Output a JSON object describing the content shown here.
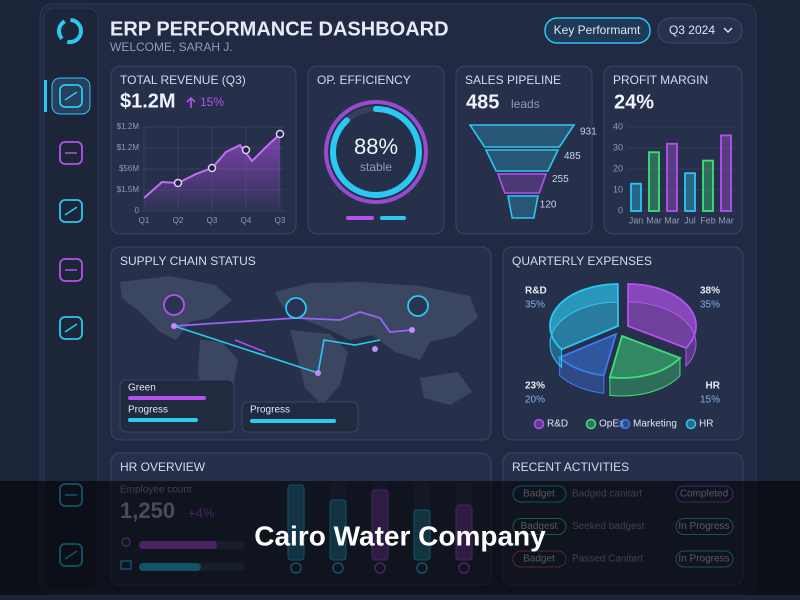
{
  "header": {
    "title": "ERP PERFORMANCE DASHBOARD",
    "subtitle": "WELCOME, SARAH J.",
    "button": "Key Performamt",
    "period": "Q3 2024"
  },
  "revenue": {
    "title": "TOTAL REVENUE (Q3)",
    "value": "$1.2M",
    "change": "15%",
    "y_labels": [
      "$1.2M",
      "$1.2M",
      "$56M",
      "$1.5M",
      "0"
    ],
    "x_labels": [
      "Q1",
      "Q2",
      "Q3",
      "Q4",
      "Q3"
    ]
  },
  "efficiency": {
    "title": "OP. EFFICIENCY",
    "value": 88,
    "value_label": "88%",
    "status": "stable"
  },
  "pipeline": {
    "title": "SALES PIPELINE",
    "value": "485",
    "unit": "leads",
    "stages": [
      "931",
      "485",
      "255",
      "120"
    ]
  },
  "profit_margin": {
    "title": "PROFIT MARGIN",
    "value": "24%",
    "categories": [
      "Jan",
      "Mar",
      "Mar",
      "Jul",
      "Feb",
      "Mar"
    ],
    "values": [
      13,
      28,
      32,
      18,
      24,
      36
    ],
    "colors": [
      "#2bc8f2",
      "#3ee07a",
      "#b452ee",
      "#2bc8f2",
      "#3ee07a",
      "#b452ee"
    ],
    "ylim": [
      0,
      40
    ],
    "yticks": [
      0,
      10,
      20,
      30,
      40
    ]
  },
  "supply_chain": {
    "title": "SUPPLY CHAIN STATUS",
    "legend": [
      "Green",
      "Progress",
      "Progress"
    ]
  },
  "expenses": {
    "title": "QUARTERLY EXPENSES",
    "callouts": [
      [
        "R&D",
        "35%"
      ],
      [
        "38%",
        "35%"
      ],
      [
        "23%",
        "20%"
      ],
      [
        "HR",
        "15%"
      ]
    ],
    "legend": [
      "R&D",
      "OpEx",
      "Marketing",
      "HR"
    ]
  },
  "hr": {
    "title": "HR OVERVIEW",
    "label": "Employee count",
    "value": "1,250",
    "change": "+4%"
  },
  "activities": {
    "title": "RECENT ACTIVITIES",
    "rows": [
      [
        "Badget",
        "Badged canitart",
        "Completed"
      ],
      [
        "Badgest",
        "Seeked badgest",
        "In Progress"
      ],
      [
        "Badget",
        "Passed Canitart",
        "In Progress"
      ]
    ]
  },
  "caption": "Cairo Water Company"
}
